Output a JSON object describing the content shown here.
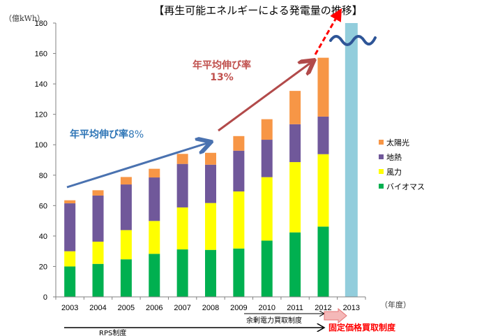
{
  "chart_data": {
    "type": "bar",
    "stacked": true,
    "title": "【再生可能エネルギーによる発電量の推移】",
    "ylabel": "（億kWh）",
    "xlabel": "（年度）",
    "ylim": [
      0,
      180
    ],
    "yticks": [
      0,
      20,
      40,
      60,
      80,
      100,
      120,
      140,
      160,
      180
    ],
    "categories": [
      "2003",
      "2004",
      "2005",
      "2006",
      "2007",
      "2008",
      "2009",
      "2010",
      "2011",
      "2012",
      "2013"
    ],
    "series": [
      {
        "name": "バイオマス",
        "color": "#00b050",
        "values": [
          20,
          21.7,
          24.7,
          28.3,
          31.2,
          30.9,
          31.8,
          37.0,
          42.4,
          46.2,
          null
        ]
      },
      {
        "name": "風力",
        "color": "#ffff00",
        "values": [
          10,
          14.6,
          19.2,
          21.6,
          27.6,
          30.8,
          37.5,
          41.7,
          46.2,
          47.6,
          null
        ]
      },
      {
        "name": "地熱",
        "color": "#70589a",
        "values": [
          31.5,
          30.3,
          30.0,
          28.6,
          28.6,
          25.2,
          26.8,
          24.6,
          24.9,
          24.7,
          null
        ]
      },
      {
        "name": "太陽光",
        "color": "#f79646",
        "values": [
          2.0,
          3.5,
          4.9,
          5.7,
          6.6,
          7.8,
          9.6,
          13.5,
          21.9,
          38.7,
          null
        ]
      }
    ],
    "projection": {
      "category": "2013",
      "value": 180,
      "color": "#92cddc",
      "truncated": true
    },
    "legend": {
      "placement": "right",
      "order": [
        "太陽光",
        "地熱",
        "風力",
        "バイオマス"
      ]
    },
    "annotations": {
      "growth_8": {
        "label": "年平均伸び率",
        "value": "8%",
        "color": "#2e75b6"
      },
      "growth_13": {
        "label": "年平均伸び率",
        "value": "13%",
        "color": "#c0504d"
      },
      "dashed_arrow_color": "#ff0000",
      "break_mark_color": "#2e5597"
    },
    "policies": {
      "rps": "RPS制度",
      "surplus": "余剰電力買取制度",
      "fit": "固定価格買取制度"
    }
  }
}
